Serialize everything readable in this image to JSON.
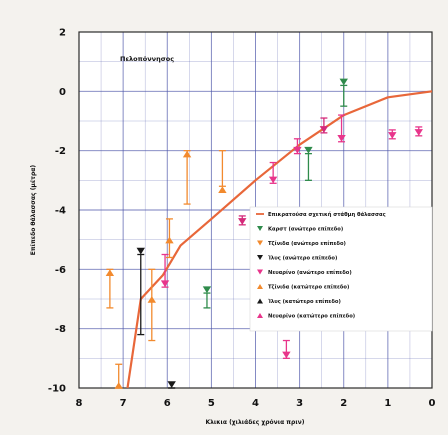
{
  "chart_data": {
    "type": "scatter",
    "title": "",
    "xlabel": "Κλικια (χιλιάδες χρόνια πριν)",
    "ylabel": "Επίπεδο θάλασσας (μέτρα)",
    "annotation": "Πελοπόννησος",
    "xlim": [
      8,
      0
    ],
    "ylim": [
      -10,
      2
    ],
    "x_ticks": [
      8,
      7,
      6,
      5,
      4,
      3,
      2,
      1,
      0
    ],
    "y_ticks": [
      2,
      0,
      -2,
      -4,
      -6,
      -8,
      -10
    ],
    "grid": true,
    "legend_position": "center-right",
    "colors": {
      "curve": "#e8673a",
      "pink": "#e8358b",
      "orange": "#f28a2e",
      "green": "#2f8b4b",
      "black": "#1a1a1a",
      "magenta": "#d42a7a",
      "grid": "#4a54a8"
    },
    "curve": {
      "name": "Επικρατούσα σχετική στάθμη θάλασσας",
      "points": [
        {
          "x": 6.9,
          "y": -10
        },
        {
          "x": 6.6,
          "y": -7
        },
        {
          "x": 6.1,
          "y": -6.2
        },
        {
          "x": 5.7,
          "y": -5.2
        },
        {
          "x": 5.0,
          "y": -4.3
        },
        {
          "x": 4.0,
          "y": -3.0
        },
        {
          "x": 3.0,
          "y": -1.8
        },
        {
          "x": 2.0,
          "y": -0.8
        },
        {
          "x": 1.0,
          "y": -0.2
        },
        {
          "x": 0.0,
          "y": 0.0
        }
      ]
    },
    "legend": [
      {
        "label": "Επικρατούσα σχετική στάθμη θάλασσας",
        "marker": "line",
        "color": "#e8673a"
      },
      {
        "label": "Καρστ (ανώτερο επίπεδο)",
        "marker": "down",
        "color": "#2f8b4b"
      },
      {
        "label": "Τζίνιδα (ανώτερο επίπεδο)",
        "marker": "down",
        "color": "#f28a2e"
      },
      {
        "label": "Ίλυς (ανώτερο επίπεδο)",
        "marker": "down",
        "color": "#1a1a1a"
      },
      {
        "label": "Νευαρίνο (ανώτερο επίπεδο)",
        "marker": "down",
        "color": "#e8358b"
      },
      {
        "label": "Τζίνιδα (κατώτερο επίπεδο)",
        "marker": "up",
        "color": "#f28a2e"
      },
      {
        "label": "Ίλυς (κατώτερο επίπεδο)",
        "marker": "up",
        "color": "#1a1a1a"
      },
      {
        "label": "Νευαρίνο (κατώτερο επίπεδο)",
        "marker": "up",
        "color": "#e8358b"
      }
    ],
    "series": [
      {
        "color": "#e8358b",
        "marker": "down",
        "points": [
          {
            "x": 6.05,
            "y": -6.6,
            "lo": -6.6,
            "hi": -5.5
          },
          {
            "x": 3.6,
            "y": -3.1,
            "lo": -3.1,
            "hi": -2.4
          },
          {
            "x": 3.05,
            "y": -2.1,
            "lo": -2.1,
            "hi": -1.6
          },
          {
            "x": 2.05,
            "y": -1.7,
            "lo": -1.7,
            "hi": -0.8
          },
          {
            "x": 0.9,
            "y": -1.6,
            "lo": -1.6,
            "hi": -1.3
          },
          {
            "x": 0.3,
            "y": -1.5,
            "lo": -1.5,
            "hi": -1.2
          },
          {
            "x": 3.3,
            "y": -9.0,
            "lo": -9.0,
            "hi": -8.4
          }
        ]
      },
      {
        "color": "#d42a7a",
        "marker": "down",
        "points": [
          {
            "x": 4.3,
            "y": -4.5,
            "lo": -4.5,
            "hi": -4.2
          },
          {
            "x": 2.45,
            "y": -1.4,
            "lo": -1.4,
            "hi": -0.9
          }
        ]
      },
      {
        "color": "#f28a2e",
        "marker": "up",
        "points": [
          {
            "x": 7.3,
            "y": -6.0,
            "lo": -7.3,
            "hi": -6.0
          },
          {
            "x": 7.1,
            "y": -9.8,
            "lo": -10.0,
            "hi": -9.2
          },
          {
            "x": 6.35,
            "y": -6.9,
            "lo": -8.4,
            "hi": -6.0
          },
          {
            "x": 5.95,
            "y": -4.9,
            "lo": -5.6,
            "hi": -4.3
          },
          {
            "x": 5.55,
            "y": -2.0,
            "lo": -3.8,
            "hi": -2.0
          },
          {
            "x": 4.75,
            "y": -3.2,
            "lo": -3.2,
            "hi": -2.0
          }
        ]
      },
      {
        "color": "#2f8b4b",
        "marker": "down",
        "points": [
          {
            "x": 5.1,
            "y": -6.8,
            "lo": -7.3,
            "hi": -6.8
          },
          {
            "x": 2.8,
            "y": -2.1,
            "lo": -3.0,
            "hi": -2.1
          },
          {
            "x": 2.0,
            "y": 0.2,
            "lo": -0.5,
            "hi": 0.2
          }
        ]
      },
      {
        "color": "#1a1a1a",
        "marker": "down",
        "points": [
          {
            "x": 6.6,
            "y": -5.5,
            "lo": -8.2,
            "hi": -5.5
          },
          {
            "x": 5.9,
            "y": -10.0,
            "lo": -10.0,
            "hi": -10.0
          }
        ]
      }
    ]
  }
}
